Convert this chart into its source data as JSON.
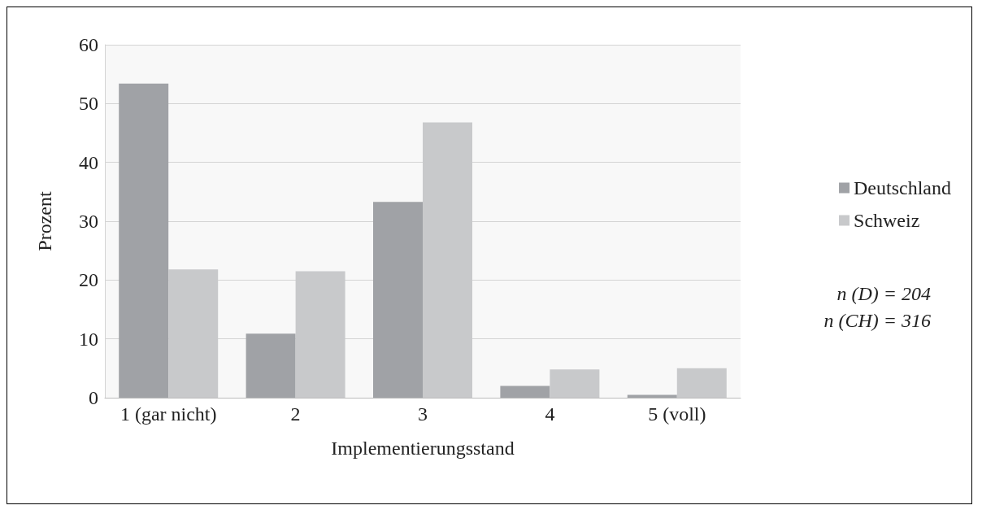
{
  "chart_data": {
    "type": "bar",
    "xlabel": "Implementierungsstand",
    "ylabel": "Prozent",
    "categories": [
      "1 (gar nicht)",
      "2",
      "3",
      "4",
      "5 (voll)"
    ],
    "series": [
      {
        "name": "Deutschland",
        "color": "#a0a2a6",
        "values": [
          53.4,
          10.9,
          33.3,
          2.0,
          0.5
        ]
      },
      {
        "name": "Schweiz",
        "color": "#c8c9cb",
        "values": [
          21.8,
          21.5,
          46.8,
          4.8,
          5.0
        ]
      }
    ],
    "ylim": [
      0,
      60
    ],
    "yticks": [
      0,
      10,
      20,
      30,
      40,
      50,
      60
    ],
    "grid": "y",
    "legend": "right",
    "annotations": [
      "n (D) = 204",
      "n (CH) = 316"
    ]
  }
}
